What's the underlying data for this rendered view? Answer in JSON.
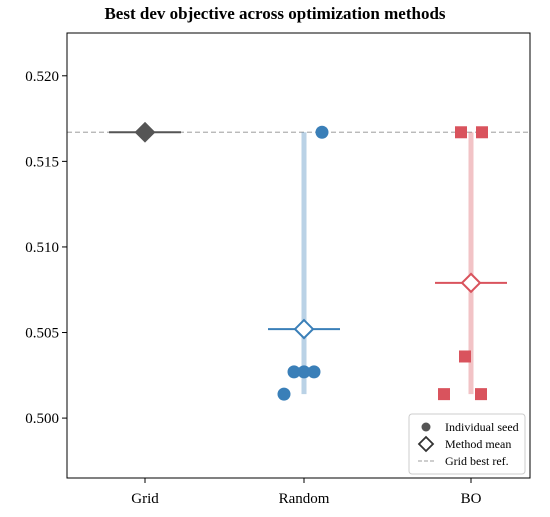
{
  "chart_data": {
    "type": "scatter",
    "title": "Best dev objective across optimization methods",
    "xlabel": "",
    "ylabel": "",
    "categories": [
      "Grid",
      "Random",
      "BO"
    ],
    "ylim": [
      0.4965,
      0.5225
    ],
    "yticks": [
      "0.500",
      "0.505",
      "0.510",
      "0.515",
      "0.520"
    ],
    "grid": false,
    "reference_line": {
      "name": "Grid best ref.",
      "value": 0.5167,
      "color": "#b0b0b0"
    },
    "series": [
      {
        "category": "Grid",
        "color": "#555555",
        "marker": "circle",
        "seeds": [
          0.5167
        ],
        "mean": 0.5167,
        "range": [
          0.5167,
          0.5167
        ]
      },
      {
        "category": "Random",
        "color": "#3a7fb8",
        "marker": "circle",
        "seeds": [
          0.5167,
          0.5027,
          0.5027,
          0.5027,
          0.5014
        ],
        "mean": 0.5052,
        "range": [
          0.5014,
          0.5167
        ]
      },
      {
        "category": "BO",
        "color": "#d9535d",
        "marker": "square",
        "seeds": [
          0.5167,
          0.5167,
          0.5036,
          0.5014,
          0.5014
        ],
        "mean": 0.5079,
        "range": [
          0.5014,
          0.5167
        ]
      }
    ],
    "legend": {
      "position": "lower-right",
      "entries": [
        {
          "label": "Individual seed",
          "symbol": "dot"
        },
        {
          "label": "Method mean",
          "symbol": "diamond"
        },
        {
          "label": "Grid best ref.",
          "symbol": "dashed-line"
        }
      ]
    }
  }
}
